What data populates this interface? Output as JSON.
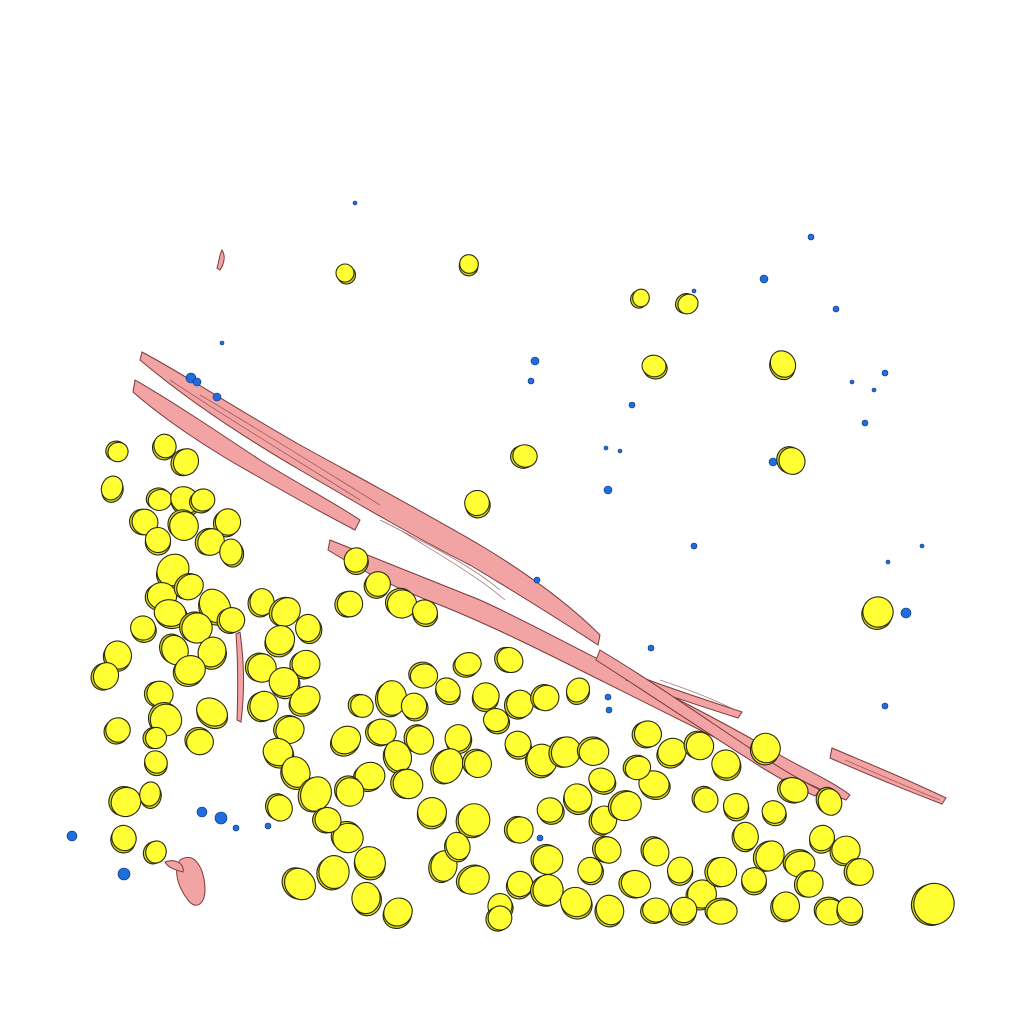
{
  "colors": {
    "background": "#ffffff",
    "cell_fill": "#ffff33",
    "cell_shade": "#d8d81a",
    "vessel_fill": "#f2a3a3",
    "vessel_dark": "#c46a6a",
    "dot_fill": "#1f6ee0"
  }
}
